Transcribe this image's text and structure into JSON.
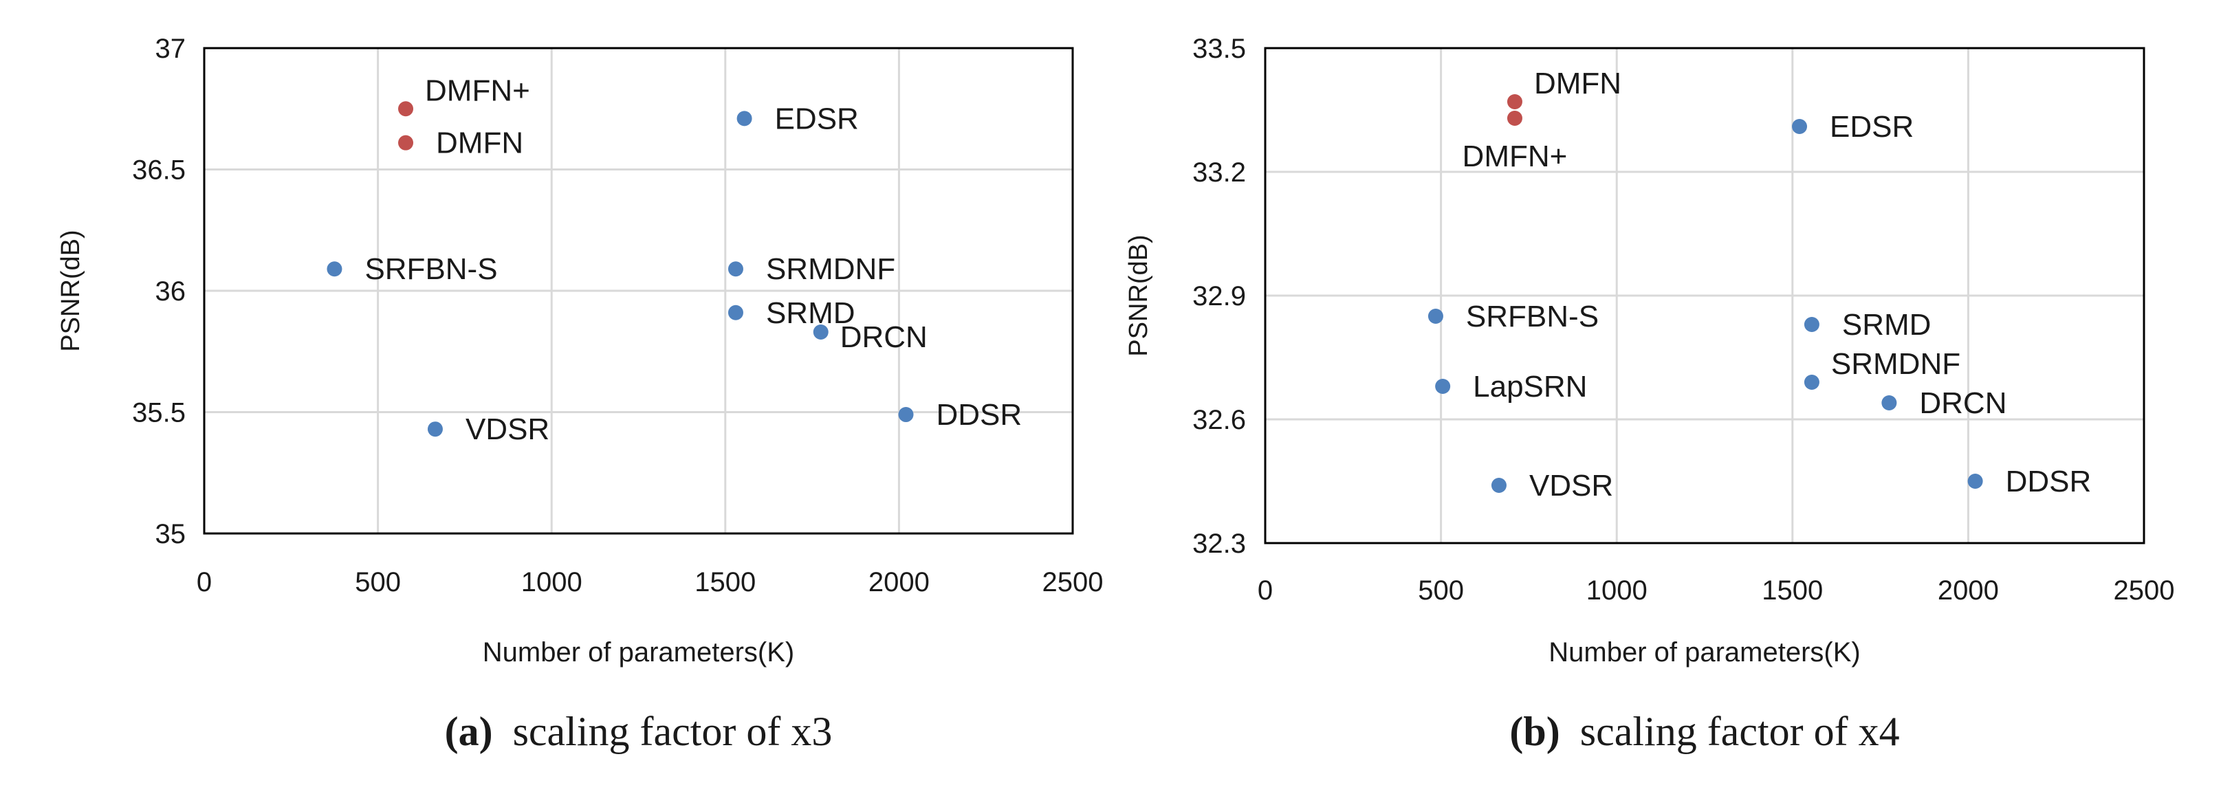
{
  "colors": {
    "model_point": "#4F81BD",
    "ours_point": "#C0504D",
    "axis": "#000000",
    "grid": "#D9D9D9",
    "text": "#1a1a1a"
  },
  "chart_data": [
    {
      "type": "scatter",
      "panel_label": "(a)",
      "caption": "scaling factor of x3",
      "xlabel": "Number of  parameters(K)",
      "ylabel": "PSNR(dB)",
      "xlim": [
        0,
        2500
      ],
      "ylim": [
        35,
        37
      ],
      "xticks": [
        0,
        500,
        1000,
        1500,
        2000,
        2500
      ],
      "yticks": [
        35,
        35.5,
        36,
        36.5,
        37
      ],
      "grid": true,
      "points": [
        {
          "label": "DMFN+",
          "x": 580,
          "y": 36.75,
          "group": "ours",
          "label_pos": "upper-right"
        },
        {
          "label": "DMFN",
          "x": 580,
          "y": 36.61,
          "group": "ours",
          "label_pos": "right"
        },
        {
          "label": "EDSR",
          "x": 1555,
          "y": 36.71,
          "group": "model",
          "label_pos": "right"
        },
        {
          "label": "SRFBN-S",
          "x": 375,
          "y": 36.09,
          "group": "model",
          "label_pos": "right"
        },
        {
          "label": "SRMDNF",
          "x": 1530,
          "y": 36.09,
          "group": "model",
          "label_pos": "right"
        },
        {
          "label": "SRMD",
          "x": 1530,
          "y": 35.91,
          "group": "model",
          "label_pos": "right"
        },
        {
          "label": "DRCN",
          "x": 1775,
          "y": 35.83,
          "group": "model",
          "label_pos": "lower-right"
        },
        {
          "label": "VDSR",
          "x": 665,
          "y": 35.43,
          "group": "model",
          "label_pos": "right"
        },
        {
          "label": "DDSR",
          "x": 2020,
          "y": 35.49,
          "group": "model",
          "label_pos": "right"
        }
      ]
    },
    {
      "type": "scatter",
      "panel_label": "(b)",
      "caption": "scaling factor of x4",
      "xlabel": "Number of  parameters(K)",
      "ylabel": "PSNR(dB)",
      "xlim": [
        0,
        2500
      ],
      "ylim": [
        32.3,
        33.5
      ],
      "xticks": [
        0,
        500,
        1000,
        1500,
        2000,
        2500
      ],
      "yticks": [
        32.3,
        32.6,
        32.9,
        33.2,
        33.5
      ],
      "grid": true,
      "points": [
        {
          "label": "DMFN",
          "x": 710,
          "y": 33.37,
          "group": "ours",
          "label_pos": "upper-right"
        },
        {
          "label": "DMFN+",
          "x": 710,
          "y": 33.33,
          "group": "ours",
          "label_pos": "below"
        },
        {
          "label": "EDSR",
          "x": 1520,
          "y": 33.31,
          "group": "model",
          "label_pos": "right"
        },
        {
          "label": "SRFBN-S",
          "x": 485,
          "y": 32.85,
          "group": "model",
          "label_pos": "right"
        },
        {
          "label": "LapSRN",
          "x": 505,
          "y": 32.68,
          "group": "model",
          "label_pos": "right"
        },
        {
          "label": "SRMD",
          "x": 1555,
          "y": 32.83,
          "group": "model",
          "label_pos": "right"
        },
        {
          "label": "SRMDNF",
          "x": 1555,
          "y": 32.69,
          "group": "model",
          "label_pos": "upper-right"
        },
        {
          "label": "DRCN",
          "x": 1775,
          "y": 32.64,
          "group": "model",
          "label_pos": "right"
        },
        {
          "label": "VDSR",
          "x": 665,
          "y": 32.44,
          "group": "model",
          "label_pos": "right"
        },
        {
          "label": "DDSR",
          "x": 2020,
          "y": 32.45,
          "group": "model",
          "label_pos": "right"
        }
      ]
    }
  ]
}
